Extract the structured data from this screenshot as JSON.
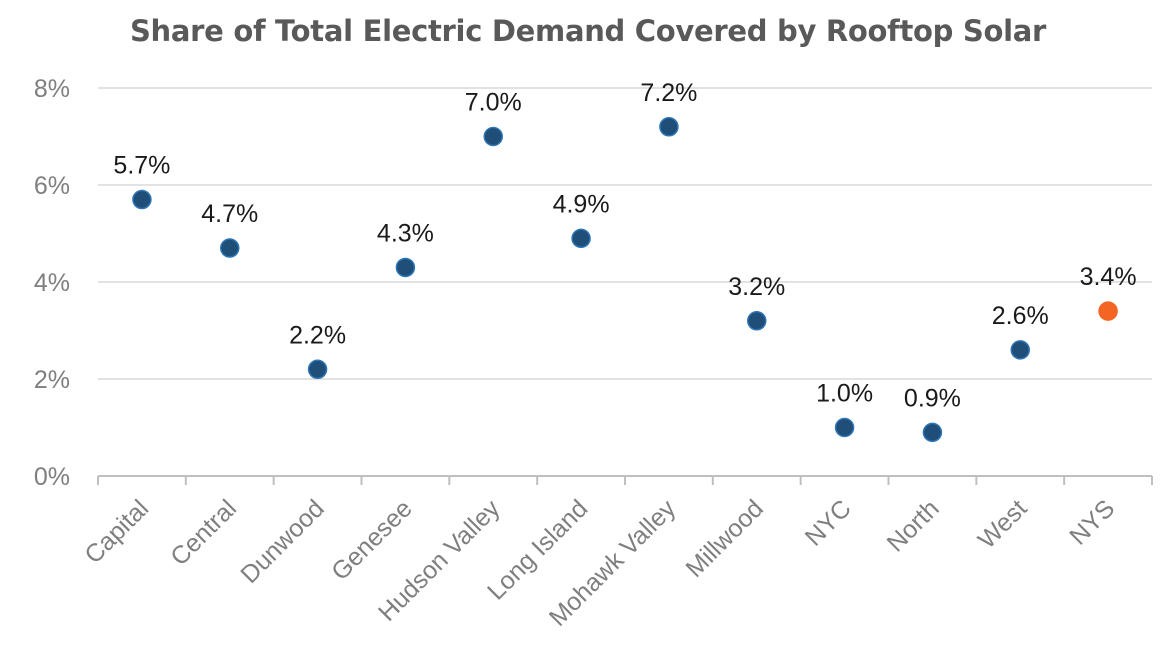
{
  "chart_data": {
    "type": "scatter",
    "title": "Share of Total Electric Demand Covered by Rooftop Solar",
    "xlabel": "",
    "ylabel": "",
    "categories": [
      "Capital",
      "Central",
      "Dunwood",
      "Genesee",
      "Hudson Valley",
      "Long Island",
      "Mohawk Valley",
      "Millwood",
      "NYC",
      "North",
      "West",
      "NYS"
    ],
    "values": [
      5.7,
      4.7,
      2.2,
      4.3,
      7.0,
      4.9,
      7.2,
      3.2,
      1.0,
      0.9,
      2.6,
      3.4
    ],
    "data_labels": [
      "5.7%",
      "4.7%",
      "2.2%",
      "4.3%",
      "7.0%",
      "4.9%",
      "7.2%",
      "3.2%",
      "1.0%",
      "0.9%",
      "2.6%",
      "3.4%"
    ],
    "y_ticks": [
      "0%",
      "2%",
      "4%",
      "6%",
      "8%"
    ],
    "y_tick_values": [
      0,
      2,
      4,
      6,
      8
    ],
    "ylim": [
      0,
      8
    ],
    "grid": true,
    "legend": "none",
    "colors": {
      "point": "#1f4e79",
      "point_stroke": "#2e75b6",
      "highlight": "#f26522",
      "grid": "#d9d9d9",
      "axis": "#bfbfbf"
    },
    "highlight_category": "NYS"
  }
}
